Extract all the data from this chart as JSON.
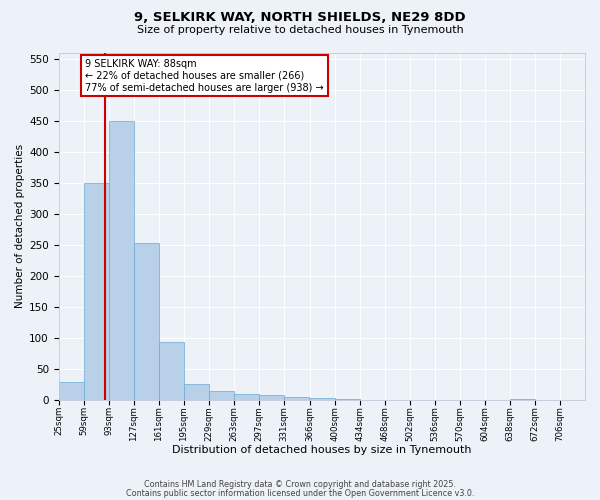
{
  "title1": "9, SELKIRK WAY, NORTH SHIELDS, NE29 8DD",
  "title2": "Size of property relative to detached houses in Tynemouth",
  "xlabel": "Distribution of detached houses by size in Tynemouth",
  "ylabel": "Number of detached properties",
  "bin_labels": [
    "25sqm",
    "59sqm",
    "93sqm",
    "127sqm",
    "161sqm",
    "195sqm",
    "229sqm",
    "263sqm",
    "297sqm",
    "331sqm",
    "366sqm",
    "400sqm",
    "434sqm",
    "468sqm",
    "502sqm",
    "536sqm",
    "570sqm",
    "604sqm",
    "638sqm",
    "672sqm",
    "706sqm"
  ],
  "bin_edges": [
    25,
    59,
    93,
    127,
    161,
    195,
    229,
    263,
    297,
    331,
    366,
    400,
    434,
    468,
    502,
    536,
    570,
    604,
    638,
    672,
    706,
    740
  ],
  "bar_values": [
    28,
    350,
    450,
    253,
    93,
    25,
    14,
    10,
    7,
    5,
    3,
    1,
    0,
    0,
    0,
    0,
    0,
    0,
    1,
    0,
    0
  ],
  "bar_color": "#b8d0e8",
  "bar_edge_color": "#6aaad4",
  "property_size": 88,
  "property_label": "9 SELKIRK WAY: 88sqm",
  "annotation_line1": "← 22% of detached houses are smaller (266)",
  "annotation_line2": "77% of semi-detached houses are larger (938) →",
  "vline_color": "#cc0000",
  "ylim": [
    0,
    560
  ],
  "yticks": [
    0,
    50,
    100,
    150,
    200,
    250,
    300,
    350,
    400,
    450,
    500,
    550
  ],
  "annotation_box_facecolor": "white",
  "annotation_box_edgecolor": "#cc0000",
  "footer1": "Contains HM Land Registry data © Crown copyright and database right 2025.",
  "footer2": "Contains public sector information licensed under the Open Government Licence v3.0.",
  "bg_color": "#edf2f9",
  "plot_bg_color": "#edf2f9"
}
